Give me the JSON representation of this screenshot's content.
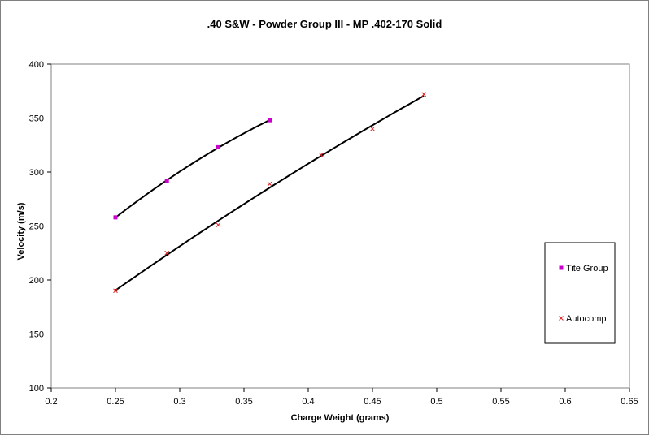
{
  "chart_data": {
    "type": "scatter",
    "title": ".40 S&W - Powder Group III - MP .402-170 Solid",
    "xlabel": "Charge Weight (grams)",
    "ylabel": "Velocity (m/s)",
    "xlim": [
      0.2,
      0.65
    ],
    "ylim": [
      100,
      400
    ],
    "x_ticks": [
      "0.2",
      "0.25",
      "0.3",
      "0.35",
      "0.4",
      "0.45",
      "0.5",
      "0.55",
      "0.6",
      "0.65"
    ],
    "y_ticks": [
      "100",
      "150",
      "200",
      "250",
      "300",
      "350",
      "400"
    ],
    "grid": false,
    "legend_position": "right",
    "series": [
      {
        "name": "Tite Group",
        "marker": "square",
        "color": "#cc00cc",
        "trendline": true,
        "x": [
          0.25,
          0.29,
          0.33,
          0.37
        ],
        "y": [
          258,
          292,
          323,
          348
        ]
      },
      {
        "name": "Autocomp",
        "marker": "x",
        "color": "#e02020",
        "trendline": true,
        "x": [
          0.25,
          0.29,
          0.33,
          0.37,
          0.41,
          0.45,
          0.49
        ],
        "y": [
          190,
          225,
          251,
          289,
          316,
          340,
          372
        ]
      }
    ]
  }
}
